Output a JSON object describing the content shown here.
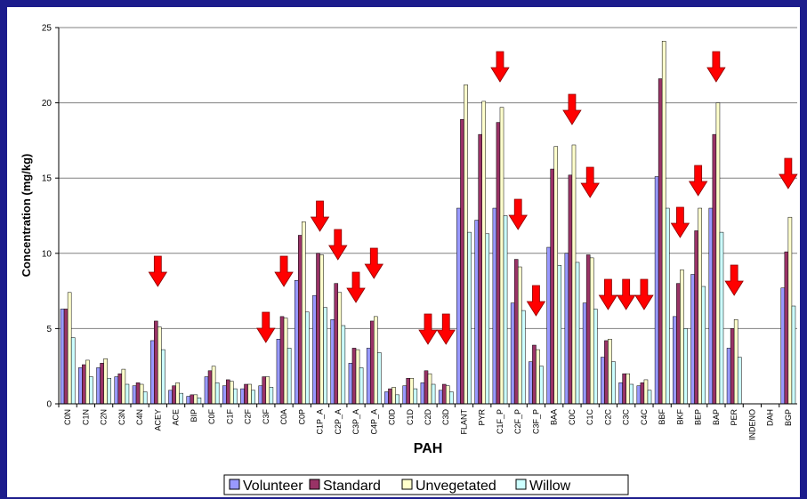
{
  "chart_data": {
    "type": "bar",
    "x_label": "PAH",
    "y_label": "Concentration (mg/kg)",
    "categories": [
      "C0N",
      "C1N",
      "C2N",
      "C3N",
      "C4N",
      "ACEY",
      "ACE",
      "BIP",
      "C0F",
      "C1F",
      "C2F",
      "C3F",
      "C0A",
      "C0P",
      "C1P_A",
      "C2P_A",
      "C3P_A",
      "C4P_A",
      "C0D",
      "C1D",
      "C2D",
      "C3D",
      "FLANT",
      "PYR",
      "C1F_P",
      "C2F_P",
      "C3F_P",
      "BAA",
      "C0C",
      "C1C",
      "C2C",
      "C3C",
      "C4C",
      "BBF",
      "BKF",
      "BEP",
      "BAP",
      "PER",
      "INDENO",
      "DAH",
      "BGP"
    ],
    "series": [
      {
        "name": "Volunteer",
        "color": "#9999ff",
        "values": [
          6.3,
          2.4,
          2.4,
          1.8,
          1.2,
          4.2,
          0.9,
          0.5,
          1.8,
          1.2,
          1.0,
          1.2,
          4.3,
          8.2,
          7.2,
          5.6,
          2.7,
          3.7,
          0.8,
          1.2,
          1.4,
          0.9,
          13.0,
          12.2,
          13.0,
          6.7,
          2.8,
          10.4,
          10.0,
          6.7,
          3.1,
          1.4,
          1.2,
          15.1,
          5.8,
          8.6,
          13.0,
          3.7,
          null,
          null,
          7.7
        ]
      },
      {
        "name": "Standard",
        "color": "#993366",
        "values": [
          6.3,
          2.6,
          2.7,
          2.0,
          1.4,
          5.5,
          1.2,
          0.6,
          2.2,
          1.6,
          1.3,
          1.8,
          5.8,
          11.2,
          10.0,
          8.0,
          3.7,
          5.5,
          1.0,
          1.7,
          2.2,
          1.3,
          18.9,
          17.9,
          18.7,
          9.6,
          3.9,
          15.6,
          15.2,
          9.9,
          4.2,
          2.0,
          1.4,
          21.6,
          8.0,
          11.5,
          17.9,
          5.0,
          null,
          null,
          10.1
        ]
      },
      {
        "name": "Unvegetated",
        "color": "#ffffcc",
        "values": [
          7.4,
          2.9,
          3.0,
          2.3,
          1.3,
          5.1,
          1.4,
          0.6,
          2.5,
          1.5,
          1.3,
          1.8,
          5.7,
          12.1,
          9.9,
          7.4,
          3.6,
          5.8,
          1.1,
          1.7,
          2.0,
          1.2,
          21.2,
          20.1,
          19.7,
          9.1,
          3.6,
          17.1,
          17.2,
          9.7,
          4.3,
          2.0,
          1.6,
          24.1,
          8.9,
          13.0,
          20.0,
          5.6,
          null,
          null,
          12.4
        ]
      },
      {
        "name": "Willow",
        "color": "#ccffff",
        "values": [
          4.4,
          1.8,
          1.7,
          1.3,
          0.8,
          3.6,
          0.7,
          0.4,
          1.4,
          1.0,
          0.9,
          1.1,
          3.7,
          6.1,
          6.4,
          5.2,
          2.4,
          3.4,
          0.6,
          1.0,
          1.3,
          0.8,
          11.4,
          11.3,
          12.5,
          6.2,
          2.5,
          9.2,
          9.4,
          6.3,
          2.8,
          1.3,
          0.9,
          13.0,
          5.0,
          7.8,
          11.4,
          3.1,
          null,
          null,
          6.5
        ]
      }
    ],
    "ylim": [
      0,
      25
    ],
    "yticks": [
      0,
      5,
      10,
      15,
      20,
      25
    ],
    "grid": true,
    "legend": "bottom"
  }
}
